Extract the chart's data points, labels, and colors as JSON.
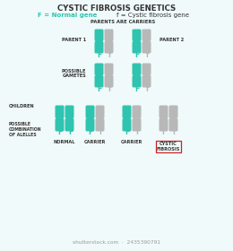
{
  "title": "CYSTIC FIBROSIS GENETICS",
  "subtitle_normal": "F = Normal gene",
  "subtitle_cf": "f = Cystic fibrosis gene",
  "teal": "#2ec4b0",
  "gray": "#b8b8b8",
  "bg": "#f0fafa",
  "red_box": "#cc2222",
  "text_dark": "#333333",
  "text_teal": "#2ec4b0",
  "text_gray": "#999999",
  "watermark": "shutterstock.com  ·  2435390791",
  "label_parents_are_carriers": "PARENTS ARE CARRIERS",
  "label_parent1": "PARENT 1",
  "label_parent2": "PARENT 2",
  "label_possible_gametes": "POSSIBLE\nGAMETES",
  "label_children": "CHILDREN",
  "label_possible_combination": "POSSIBLE\nCOMBINATION\nOF ALELLES",
  "label_normal": "NORMAL",
  "label_carrier1": "CARRIER",
  "label_carrier2": "CARRIER",
  "label_cf": "CYSTIC\nFIBROSIS"
}
